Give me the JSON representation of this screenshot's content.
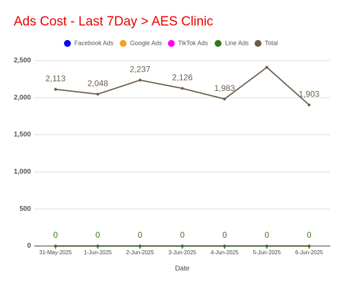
{
  "chart_data": {
    "type": "line",
    "title": "Ads Cost - Last 7Day > AES Clinic",
    "x_label": "Date",
    "categories": [
      "31-May-2025",
      "1-Jun-2025",
      "2-Jun-2025",
      "3-Jun-2025",
      "4-Jun-2025",
      "5-Jun-2025",
      "6-Jun-2025"
    ],
    "series": [
      {
        "name": "Facebook Ads",
        "color": "#0000ff",
        "values": [
          0,
          0,
          0,
          0,
          0,
          0,
          0
        ]
      },
      {
        "name": "Google Ads",
        "color": "#f4a020",
        "values": [
          0,
          0,
          0,
          0,
          0,
          0,
          0
        ]
      },
      {
        "name": "TikTok Ads",
        "color": "#ff00ff",
        "values": [
          0,
          0,
          0,
          0,
          0,
          0,
          0
        ]
      },
      {
        "name": "Line Ads",
        "color": "#38761d",
        "values": [
          0,
          0,
          0,
          0,
          0,
          0,
          0
        ],
        "value_labels": [
          "0",
          "0",
          "0",
          "0",
          "0",
          "0",
          "0"
        ]
      },
      {
        "name": "Total",
        "color": "#6b5e49",
        "values": [
          2113,
          2048,
          2237,
          2126,
          1983,
          2410,
          1903
        ],
        "value_labels": [
          "2,113",
          "2,048",
          "2,237",
          "2,126",
          "1,983",
          null,
          "1,903"
        ]
      }
    ],
    "ylim": [
      0,
      2500
    ],
    "yticks": [
      0,
      500,
      {
        "value": 1000,
        "label": "1,000"
      },
      {
        "value": 1500,
        "label": "1,500"
      },
      {
        "value": 2000,
        "label": "2,000"
      },
      {
        "value": 2500,
        "label": "2,500"
      }
    ],
    "grid": true
  }
}
